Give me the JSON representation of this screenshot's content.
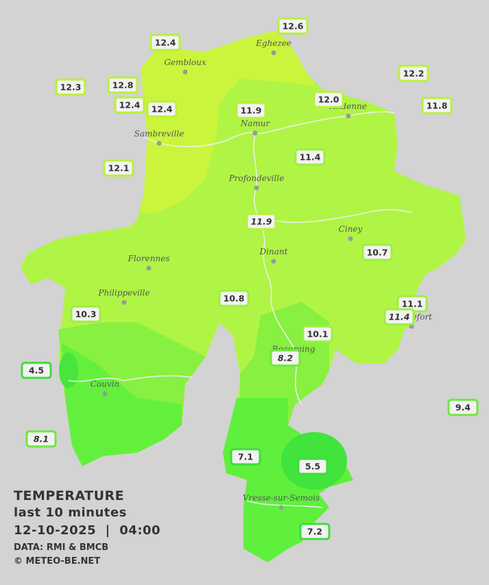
{
  "legend": {
    "title": "TEMPERATURE",
    "period": "last 10 minutes",
    "datetime": "12-10-2025  |  04:00",
    "source": "DATA: RMI & BMCB",
    "copyright": "© METEO-BE.NET"
  },
  "cities": [
    "Eghezee",
    "Gembloux",
    "Andenne",
    "Sambreville",
    "Namur",
    "Profondeville",
    "Ciney",
    "Florennes",
    "Dinant",
    "Philippeville",
    "Rochefort",
    "Beauraing",
    "Couvin",
    "Vresse-sur-Semois"
  ],
  "stations": [
    12.6,
    12.4,
    12.3,
    12.8,
    12.2,
    12.4,
    12.4,
    11.9,
    {
      "value": 12.0,
      "label": "12.0"
    },
    11.8,
    12.1,
    11.4,
    11.9,
    10.7,
    10.8,
    11.1,
    11.4,
    10.3,
    10.1,
    8.2,
    4.5,
    9.4,
    8.1,
    7.1,
    5.5,
    7.2
  ]
}
